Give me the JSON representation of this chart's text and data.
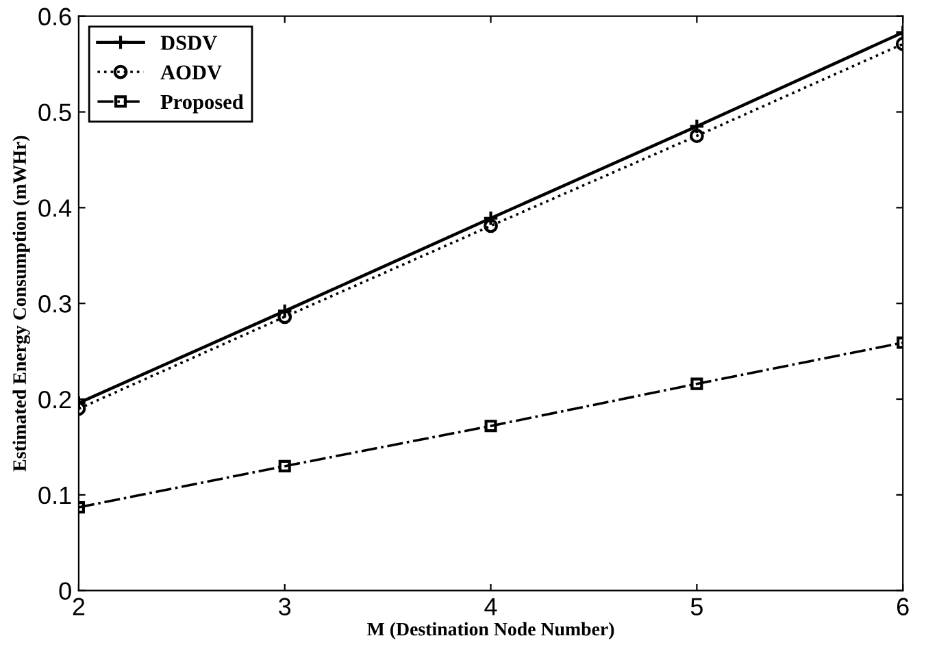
{
  "chart_data": {
    "type": "line",
    "xlabel": "M (Destination Node Number)",
    "ylabel": "Estimated Energy Consumption (mWHr)",
    "x": [
      2,
      3,
      4,
      5,
      6
    ],
    "series": [
      {
        "name": "DSDV",
        "color": "#000000",
        "values": [
          0.196,
          0.292,
          0.389,
          0.485,
          0.583
        ],
        "marker": "plus",
        "line_style": "solid"
      },
      {
        "name": "AODV",
        "color": "#000000",
        "values": [
          0.19,
          0.286,
          0.381,
          0.475,
          0.571
        ],
        "marker": "circle",
        "line_style": "dotted"
      },
      {
        "name": "Proposed",
        "color": "#000000",
        "values": [
          0.087,
          0.13,
          0.172,
          0.216,
          0.259
        ],
        "marker": "square",
        "line_style": "dashdot"
      }
    ],
    "xlim": [
      2,
      6
    ],
    "xticks": [
      2,
      3,
      4,
      5,
      6
    ],
    "ylim": [
      0,
      0.6
    ],
    "yticks": [
      0,
      0.1,
      0.2,
      0.3,
      0.4,
      0.5,
      0.6
    ],
    "grid": false,
    "legend": "top left"
  }
}
